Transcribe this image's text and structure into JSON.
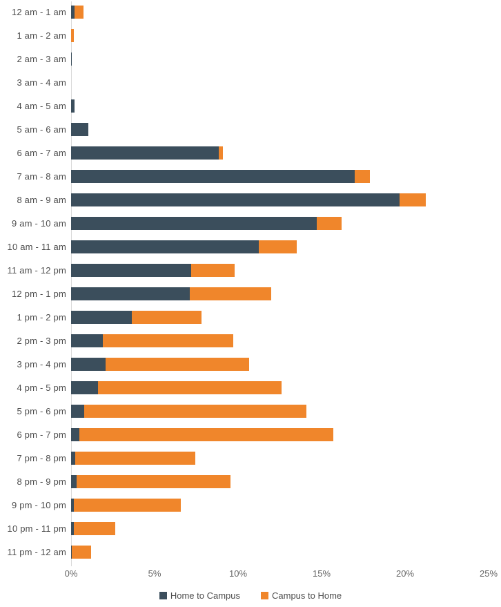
{
  "chart_data": {
    "type": "bar",
    "orientation": "horizontal",
    "stacked": true,
    "title": "",
    "xlabel": "",
    "ylabel": "",
    "xlim": [
      0,
      25
    ],
    "x_ticks": [
      "0%",
      "5%",
      "10%",
      "15%",
      "20%",
      "25%"
    ],
    "grid": false,
    "legend_position": "bottom",
    "categories": [
      "12 am - 1 am",
      "1 am - 2 am",
      "2 am - 3 am",
      "3 am - 4 am",
      "4 am - 5 am",
      "5 am - 6 am",
      "6 am - 7 am",
      "7 am - 8 am",
      "8 am - 9 am",
      "9 am - 10 am",
      "10 am - 11 am",
      "11 am - 12 pm",
      "12 pm - 1 pm",
      "1 pm - 2 pm",
      "2 pm - 3 pm",
      "3 pm - 4 pm",
      "4 pm - 5 pm",
      "5 pm - 6 pm",
      "6 pm - 7 pm",
      "7 pm - 8 pm",
      "8 pm - 9 pm",
      "9 pm - 10 pm",
      "10 pm - 11 pm",
      "11 pm - 12 am"
    ],
    "series": [
      {
        "name": "Home to Campus",
        "color": "#3B4E5C",
        "values": [
          0.2,
          0,
          0.05,
          0,
          0.2,
          1.05,
          8.85,
          17.0,
          19.65,
          14.7,
          11.25,
          7.2,
          7.1,
          3.65,
          1.9,
          2.05,
          1.6,
          0.8,
          0.5,
          0.25,
          0.35,
          0.15,
          0.15,
          0.05
        ]
      },
      {
        "name": "Campus to Home",
        "color": "#F0862B",
        "values": [
          0.55,
          0.15,
          0,
          0,
          0,
          0,
          0.25,
          0.9,
          1.6,
          1.5,
          2.25,
          2.6,
          4.9,
          4.15,
          7.8,
          8.6,
          11.0,
          13.3,
          15.2,
          7.2,
          9.2,
          6.4,
          2.5,
          1.15
        ]
      }
    ]
  },
  "legend": {
    "items": [
      {
        "label": "Home to Campus",
        "color": "#3B4E5C"
      },
      {
        "label": "Campus to Home",
        "color": "#F0862B"
      }
    ]
  }
}
